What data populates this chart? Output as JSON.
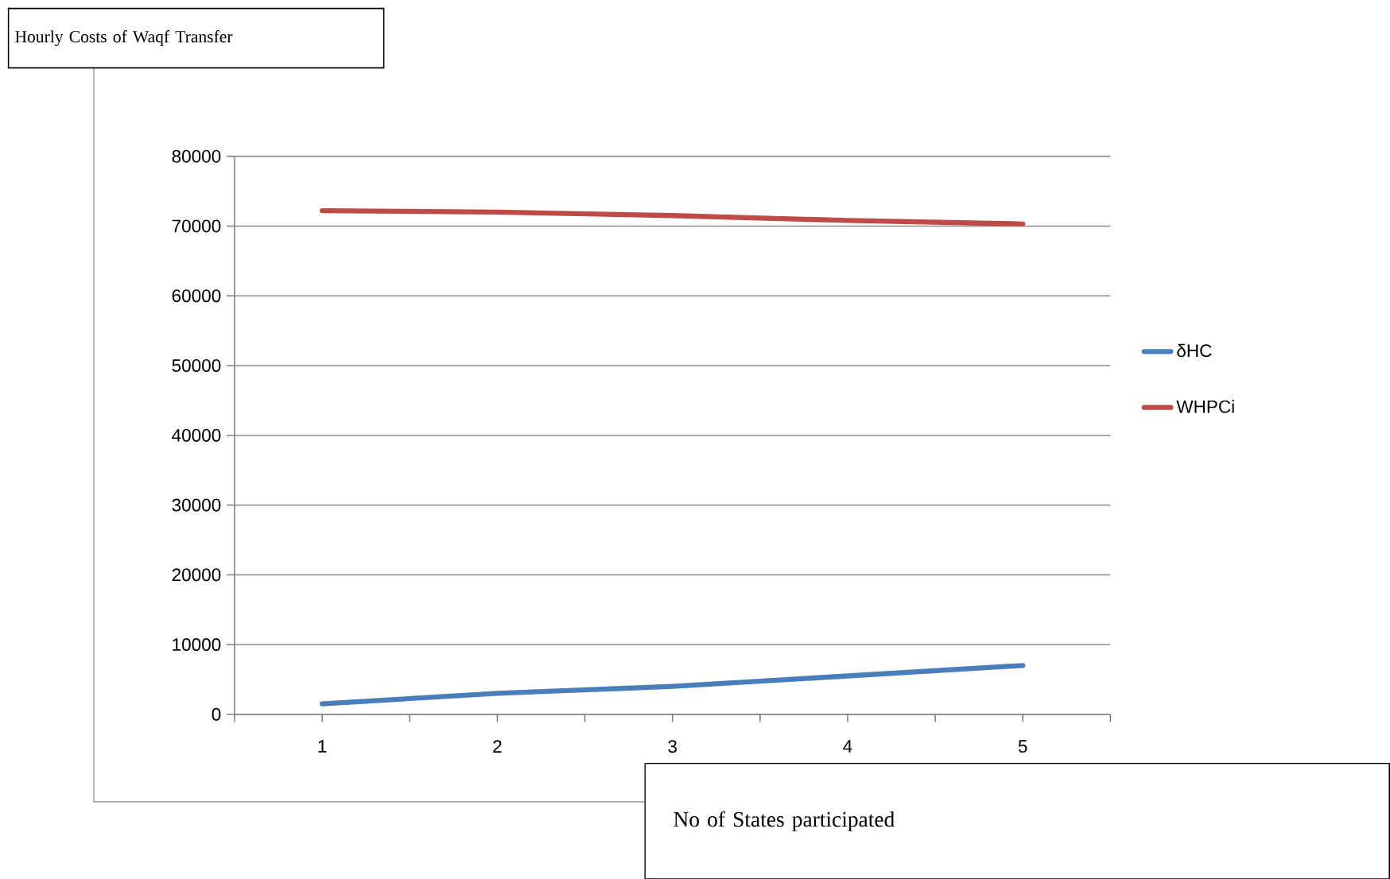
{
  "chart_data": {
    "type": "line",
    "annotations": [
      "Hourly Costs of Waqf Transfer"
    ],
    "xlabel": "No of States participated",
    "categories": [
      "1",
      "2",
      "3",
      "4",
      "5"
    ],
    "series": [
      {
        "name": "δHC",
        "color": "#4a7ebb",
        "values": [
          1500,
          3000,
          4000,
          5500,
          7000
        ]
      },
      {
        "name": "WHPCi",
        "color": "#be4b48",
        "values": [
          72200,
          72000,
          71500,
          70800,
          70300
        ]
      }
    ],
    "ylim": [
      0,
      80000
    ],
    "yticks": [
      0,
      10000,
      20000,
      30000,
      40000,
      50000,
      60000,
      70000,
      80000
    ],
    "grid": "y",
    "legend": "right",
    "marker": "none",
    "line_style": "solid"
  }
}
